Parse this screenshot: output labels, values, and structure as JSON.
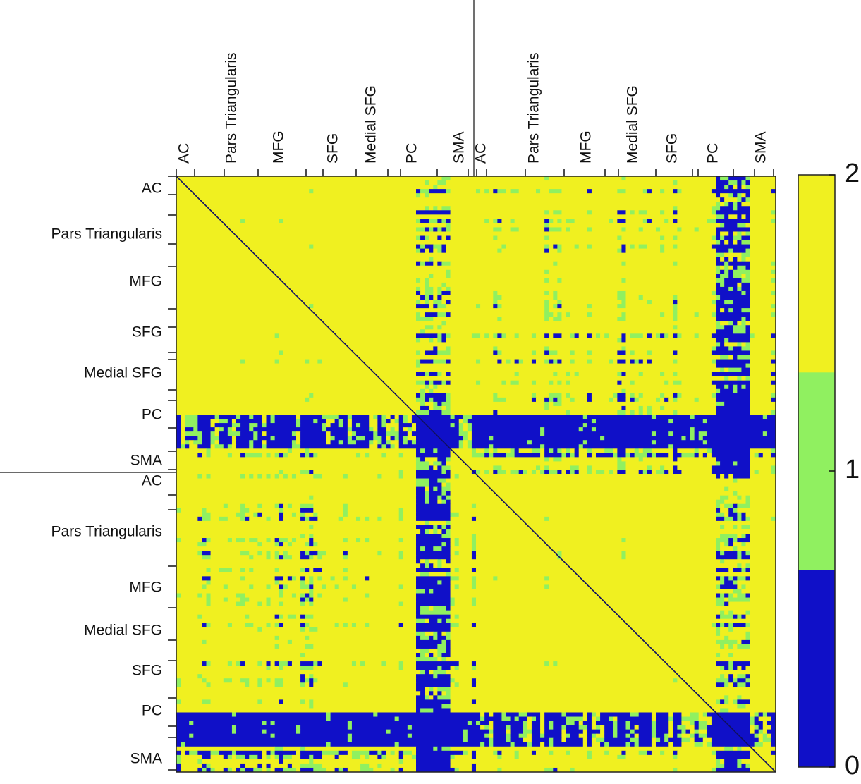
{
  "chart_data": {
    "type": "heatmap",
    "title": "",
    "xlabel": "",
    "ylabel": "",
    "x_tick_labels": [
      "AC",
      "Pars Triangularis",
      "MFG",
      "SFG",
      "Medial SFG",
      "PC",
      "SMA",
      "AC",
      "Pars Triangularis",
      "MFG",
      "Medial SFG",
      "SFG",
      "PC",
      "SMA"
    ],
    "y_tick_labels": [
      "AC",
      "Pars Triangularis",
      "MFG",
      "SFG",
      "Medial SFG",
      "PC",
      "SMA",
      "AC",
      "Pars Triangularis",
      "MFG",
      "Medial SFG",
      "SFG",
      "PC",
      "SMA"
    ],
    "value_levels": [
      0,
      1,
      2
    ],
    "colormap": [
      "#1010c8",
      "#90f060",
      "#f0f020"
    ],
    "diagonal_color": "#101060",
    "colorbar": {
      "min": 0,
      "max": 2,
      "tick_labels": [
        "0",
        "1",
        "2"
      ]
    },
    "grid": false,
    "legend": "colorbar-right"
  }
}
